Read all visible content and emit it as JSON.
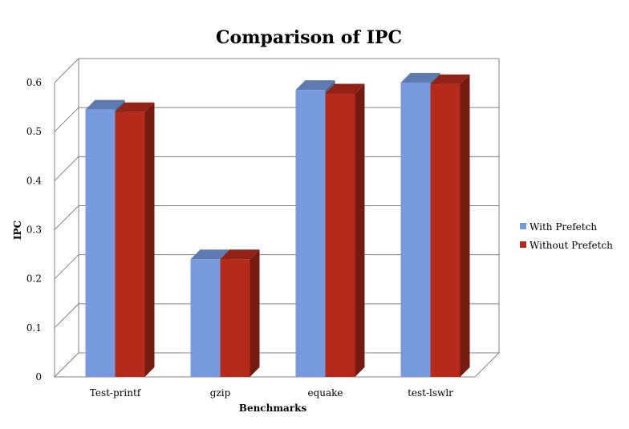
{
  "chart_data": {
    "type": "bar",
    "title": "Comparison of IPC",
    "xlabel": "Benchmarks",
    "ylabel": "IPC",
    "categories": [
      "Test-printf",
      "gzip",
      "equake",
      "test-lswlr"
    ],
    "series": [
      {
        "name": "With Prefetch",
        "values": [
          0.545,
          0.24,
          0.585,
          0.6
        ],
        "color": "#7799dd"
      },
      {
        "name": "Without Prefetch",
        "values": [
          0.54,
          0.24,
          0.578,
          0.597
        ],
        "color": "#b52a1a"
      }
    ],
    "ylim": [
      0,
      0.6
    ],
    "yticks": [
      "0",
      "0.1",
      "0.2",
      "0.3",
      "0.4",
      "0.5",
      "0.6"
    ],
    "grid": true,
    "legend_position": "right",
    "style": "3d-clustered-column"
  }
}
